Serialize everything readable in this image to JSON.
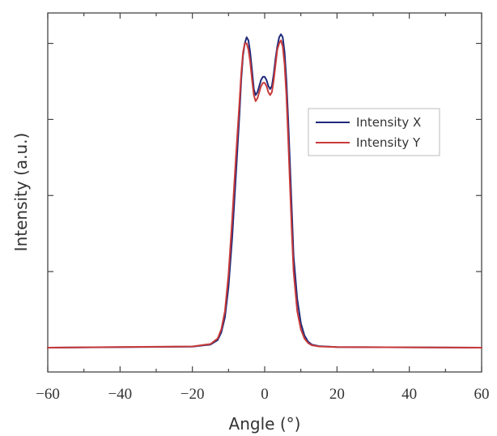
{
  "chart_data": {
    "type": "line",
    "xlabel": "Angle (°)",
    "ylabel": "Intensity (a.u.)",
    "xlim": [
      -60,
      60
    ],
    "ylim": [
      -0.08,
      1.1
    ],
    "x_ticks": [
      -60,
      -40,
      -20,
      0,
      20,
      40,
      60
    ],
    "x_tick_labels": [
      "−60",
      "−40",
      "−20",
      "0",
      "20",
      "40",
      "60"
    ],
    "y_ticks_labeled": false,
    "grid": false,
    "legend_position": "top-right",
    "series": [
      {
        "name": "Intensity X",
        "color": "#1f2a7a",
        "x": [
          -60,
          -20,
          -15,
          -13,
          -12,
          -11,
          -10,
          -9,
          -8,
          -7,
          -6.5,
          -6,
          -5.5,
          -5,
          -4.5,
          -4,
          -3.5,
          -3,
          -2.5,
          -2,
          -1.5,
          -1,
          -0.5,
          0,
          0.5,
          1,
          1.5,
          2,
          2.5,
          3,
          3.5,
          4,
          4.5,
          5,
          5.5,
          6,
          6.5,
          7,
          7.5,
          8,
          9,
          10,
          11,
          12,
          13,
          15,
          20,
          60
        ],
        "y": [
          0,
          0.003,
          0.01,
          0.025,
          0.05,
          0.1,
          0.2,
          0.36,
          0.56,
          0.76,
          0.88,
          0.96,
          1.0,
          1.02,
          1.01,
          0.97,
          0.91,
          0.85,
          0.83,
          0.84,
          0.86,
          0.88,
          0.89,
          0.89,
          0.88,
          0.86,
          0.85,
          0.86,
          0.9,
          0.95,
          0.99,
          1.02,
          1.03,
          1.02,
          0.97,
          0.88,
          0.75,
          0.6,
          0.45,
          0.3,
          0.16,
          0.08,
          0.04,
          0.02,
          0.01,
          0.005,
          0.002,
          0
        ]
      },
      {
        "name": "Intensity Y",
        "color": "#c83a3a",
        "x": [
          -60,
          -20,
          -15,
          -13,
          -12,
          -11,
          -10,
          -9,
          -8,
          -7,
          -6.5,
          -6,
          -5.5,
          -5,
          -4.5,
          -4,
          -3.5,
          -3,
          -2.5,
          -2,
          -1.5,
          -1,
          -0.5,
          0,
          0.5,
          1,
          1.5,
          2,
          2.5,
          3,
          3.5,
          4,
          4.5,
          5,
          5.5,
          6,
          6.5,
          7,
          7.5,
          8,
          9,
          10,
          11,
          12,
          13,
          15,
          20,
          60
        ],
        "y": [
          0,
          0.004,
          0.012,
          0.03,
          0.06,
          0.12,
          0.24,
          0.42,
          0.62,
          0.8,
          0.9,
          0.97,
          1.0,
          1.0,
          0.98,
          0.94,
          0.88,
          0.83,
          0.81,
          0.82,
          0.84,
          0.86,
          0.87,
          0.87,
          0.86,
          0.84,
          0.83,
          0.84,
          0.88,
          0.93,
          0.98,
          1.0,
          1.01,
          0.99,
          0.93,
          0.83,
          0.69,
          0.53,
          0.38,
          0.25,
          0.12,
          0.06,
          0.03,
          0.015,
          0.008,
          0.004,
          0.002,
          0
        ]
      }
    ]
  }
}
